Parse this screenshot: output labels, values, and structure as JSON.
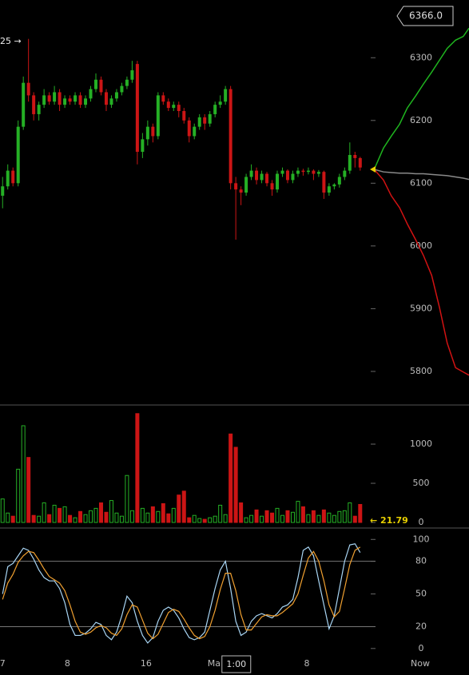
{
  "chart_data": [
    {
      "type": "candlestick",
      "open": [
        6080,
        6095,
        6120,
        6100,
        6190,
        6260,
        6240,
        6210,
        6225,
        6240,
        6230,
        6245,
        6225,
        6235,
        6230,
        6240,
        6225,
        6235,
        6250,
        6265,
        6245,
        6225,
        6235,
        6245,
        6255,
        6265,
        6290,
        6150,
        6170,
        6190,
        6175,
        6240,
        6230,
        6220,
        6225,
        6215,
        6200,
        6175,
        6190,
        6205,
        6195,
        6210,
        6225,
        6230,
        6250,
        6100,
        6090,
        6085,
        6110,
        6120,
        6105,
        6115,
        6100,
        6090,
        6115,
        6120,
        6105,
        6115,
        6120,
        6118,
        6120,
        6115,
        6118,
        6085,
        6095,
        6098,
        6110,
        6120,
        6145,
        6140
      ],
      "high": [
        6110,
        6130,
        6125,
        6200,
        6270,
        6330,
        6245,
        6230,
        6250,
        6245,
        6255,
        6250,
        6240,
        6240,
        6245,
        6245,
        6240,
        6255,
        6275,
        6270,
        6250,
        6240,
        6250,
        6260,
        6270,
        6295,
        6295,
        6180,
        6200,
        6195,
        6245,
        6245,
        6235,
        6230,
        6230,
        6220,
        6205,
        6195,
        6210,
        6210,
        6215,
        6230,
        6240,
        6255,
        6255,
        6110,
        6095,
        6115,
        6130,
        6125,
        6120,
        6118,
        6105,
        6120,
        6125,
        6122,
        6120,
        6125,
        6123,
        6125,
        6122,
        6121,
        6120,
        6100,
        6100,
        6115,
        6125,
        6165,
        6150,
        6142
      ],
      "low": [
        6060,
        6090,
        6095,
        6095,
        6185,
        6230,
        6200,
        6200,
        6220,
        6225,
        6225,
        6215,
        6220,
        6225,
        6225,
        6220,
        6220,
        6230,
        6245,
        6240,
        6215,
        6220,
        6230,
        6240,
        6250,
        6260,
        6130,
        6140,
        6160,
        6165,
        6170,
        6225,
        6215,
        6215,
        6205,
        6195,
        6165,
        6170,
        6185,
        6185,
        6190,
        6205,
        6220,
        6225,
        6090,
        6010,
        6065,
        6080,
        6105,
        6098,
        6100,
        6095,
        6080,
        6085,
        6110,
        6100,
        6100,
        6110,
        6112,
        6114,
        6105,
        6110,
        6075,
        6080,
        6090,
        6093,
        6105,
        6115,
        6125,
        6120
      ],
      "close": [
        6095,
        6120,
        6100,
        6190,
        6260,
        6240,
        6210,
        6225,
        6240,
        6230,
        6245,
        6225,
        6235,
        6230,
        6240,
        6225,
        6235,
        6250,
        6265,
        6245,
        6225,
        6235,
        6245,
        6255,
        6265,
        6280,
        6150,
        6170,
        6190,
        6175,
        6240,
        6230,
        6220,
        6225,
        6215,
        6200,
        6175,
        6190,
        6205,
        6195,
        6210,
        6225,
        6230,
        6250,
        6100,
        6090,
        6085,
        6110,
        6120,
        6105,
        6115,
        6100,
        6090,
        6115,
        6120,
        6105,
        6115,
        6120,
        6118,
        6120,
        6115,
        6118,
        6085,
        6095,
        6098,
        6110,
        6120,
        6145,
        6140,
        6125
      ],
      "up_color": "#25b025",
      "down_color": "#cc1515",
      "ylim": [
        5749,
        6392
      ],
      "yticks": [
        5800,
        5900,
        6000,
        6100,
        6200,
        6300
      ],
      "projection_x": [
        71.7,
        73.5,
        75,
        76.6,
        78.1,
        79.7,
        81.2,
        82.8,
        84.3,
        85.8,
        87.4,
        88.9,
        90
      ],
      "series": [
        {
          "color": "#1fb51f",
          "values": [
            6122,
            6156,
            6175,
            6194,
            6220,
            6239,
            6258,
            6277,
            6296,
            6315,
            6328,
            6334,
            6347
          ]
        },
        {
          "color": "#d21212",
          "values": [
            6122,
            6105,
            6080,
            6061,
            6035,
            6010,
            5985,
            5953,
            5902,
            5845,
            5806,
            5799,
            5794
          ]
        },
        {
          "color": "#8a8a8a",
          "values": [
            6122,
            6118,
            6117,
            6116,
            6116,
            6115,
            6115,
            6114,
            6113,
            6112,
            6110,
            6108,
            6106
          ]
        }
      ],
      "last_marker": {
        "value": 6122,
        "color": "#e8d000"
      },
      "annotations": [
        "25 →",
        "6366.0"
      ]
    },
    {
      "type": "bar",
      "values": [
        300,
        120,
        80,
        680,
        1235,
        830,
        90,
        80,
        250,
        100,
        220,
        180,
        200,
        90,
        60,
        140,
        100,
        150,
        180,
        250,
        130,
        280,
        120,
        80,
        600,
        150,
        1390,
        180,
        120,
        200,
        140,
        240,
        110,
        180,
        350,
        400,
        60,
        90,
        50,
        40,
        60,
        80,
        220,
        100,
        1130,
        960,
        250,
        60,
        90,
        160,
        80,
        150,
        120,
        180,
        90,
        150,
        130,
        270,
        200,
        100,
        150,
        90,
        160,
        120,
        90,
        140,
        150,
        250,
        80,
        230
      ],
      "ylim": [
        -61,
        1500
      ],
      "yticks": [
        0,
        500,
        1000
      ],
      "last_marker": {
        "value": 21.79,
        "label": "← 21.79",
        "color": "#e8d000"
      }
    },
    {
      "type": "line",
      "series": [
        {
          "color": "#a9d6f5",
          "values": [
            50,
            75,
            78,
            85,
            92,
            90,
            82,
            72,
            65,
            62,
            62,
            55,
            42,
            22,
            12,
            12,
            14,
            18,
            24,
            22,
            12,
            8,
            15,
            30,
            48,
            42,
            25,
            12,
            5,
            10,
            25,
            35,
            38,
            35,
            28,
            18,
            10,
            8,
            10,
            15,
            35,
            55,
            72,
            80,
            55,
            25,
            12,
            15,
            25,
            30,
            32,
            30,
            28,
            32,
            38,
            40,
            45,
            65,
            90,
            93,
            85,
            62,
            40,
            18,
            30,
            55,
            80,
            95,
            96,
            88
          ]
        },
        {
          "color": "#f0a030",
          "values": [
            45,
            60,
            68,
            79,
            85,
            89,
            88,
            81,
            73,
            66,
            63,
            60,
            53,
            40,
            25,
            15,
            13,
            15,
            19,
            21,
            19,
            14,
            12,
            18,
            31,
            40,
            38,
            26,
            14,
            9,
            13,
            23,
            33,
            36,
            34,
            27,
            19,
            12,
            9,
            11,
            20,
            35,
            54,
            69,
            69,
            53,
            31,
            17,
            17,
            23,
            29,
            31,
            30,
            30,
            33,
            37,
            41,
            50,
            67,
            83,
            89,
            80,
            62,
            40,
            29,
            34,
            55,
            77,
            90,
            93
          ]
        }
      ],
      "ylim": [
        -6,
        109
      ],
      "yticks": [
        0,
        20,
        50,
        80,
        100
      ],
      "bands": [
        20,
        80
      ]
    }
  ],
  "x_axis": {
    "xlim": [
      -0.5,
      90
    ],
    "xticks": [
      {
        "value": 0,
        "label": "7"
      },
      {
        "value": 12.5,
        "label": "8"
      },
      {
        "value": 27.7,
        "label": "16"
      },
      {
        "value": 40.8,
        "label": "Ma"
      },
      {
        "value": 58.7,
        "label": "8"
      },
      {
        "value": 80.6,
        "label": "Now"
      }
    ],
    "cursor": {
      "value": 45.1,
      "label": "1:00"
    }
  }
}
